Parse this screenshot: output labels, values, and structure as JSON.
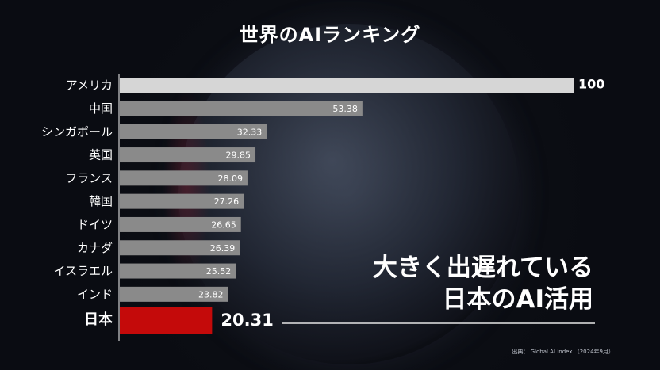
{
  "title": "世界のAIランキング",
  "annotation": {
    "line1": "大きく出遅れている",
    "line2": "日本のAI活用"
  },
  "source": "出典： Global AI Index （2024年9月）",
  "colors": {
    "background": "#0a0c12",
    "top_bar": "#d6d6d6",
    "bars": "#8a8a8a",
    "highlight": "#c40a0a",
    "text": "#ffffff"
  },
  "chart_data": {
    "type": "bar",
    "orientation": "horizontal",
    "categories": [
      "アメリカ",
      "中国",
      "シンガポール",
      "英国",
      "フランス",
      "韓国",
      "ドイツ",
      "カナダ",
      "イスラエル",
      "インド",
      "日本"
    ],
    "values": [
      100,
      53.38,
      32.33,
      29.85,
      28.09,
      27.26,
      26.65,
      26.39,
      25.52,
      23.82,
      20.31
    ],
    "value_labels": [
      "100",
      "53.38",
      "32.33",
      "29.85",
      "28.09",
      "27.26",
      "26.65",
      "26.39",
      "25.52",
      "23.82",
      "20.31"
    ],
    "highlight_category": "日本",
    "xlim": [
      0,
      100
    ],
    "grid": false,
    "legend": "none"
  }
}
